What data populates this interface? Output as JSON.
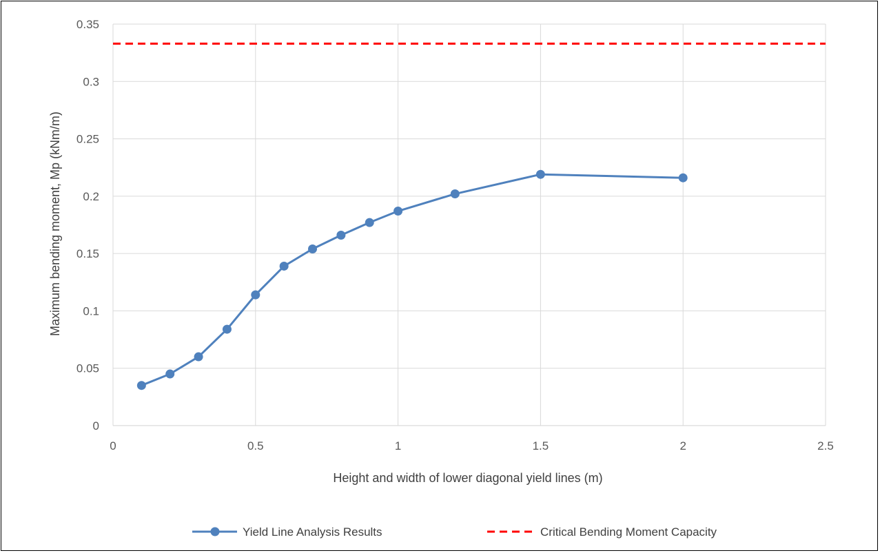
{
  "chart_data": {
    "type": "line",
    "title": "",
    "xlabel": "Height and width of lower diagonal yield lines (m)",
    "ylabel": "Maximum bending moment, Mp (kNm/m)",
    "xlim": [
      0,
      2.5
    ],
    "ylim": [
      0,
      0.35
    ],
    "x_ticks": [
      "0",
      "0.5",
      "1",
      "1.5",
      "2",
      "2.5"
    ],
    "y_ticks": [
      "0",
      "0.05",
      "0.1",
      "0.15",
      "0.2",
      "0.25",
      "0.3",
      "0.35"
    ],
    "grid": true,
    "legend_position": "bottom",
    "series": [
      {
        "name": "Yield Line Analysis Results",
        "color": "#4F81BD",
        "style": "solid-with-markers",
        "x": [
          0.1,
          0.2,
          0.3,
          0.4,
          0.5,
          0.6,
          0.7,
          0.8,
          0.9,
          1.0,
          1.2,
          1.5,
          2.0
        ],
        "y": [
          0.035,
          0.045,
          0.06,
          0.084,
          0.114,
          0.139,
          0.154,
          0.166,
          0.177,
          0.187,
          0.202,
          0.219,
          0.216
        ]
      },
      {
        "name": "Critical Bending Moment Capacity",
        "color": "#FF0000",
        "style": "dashed",
        "y_constant": 0.333
      }
    ]
  }
}
